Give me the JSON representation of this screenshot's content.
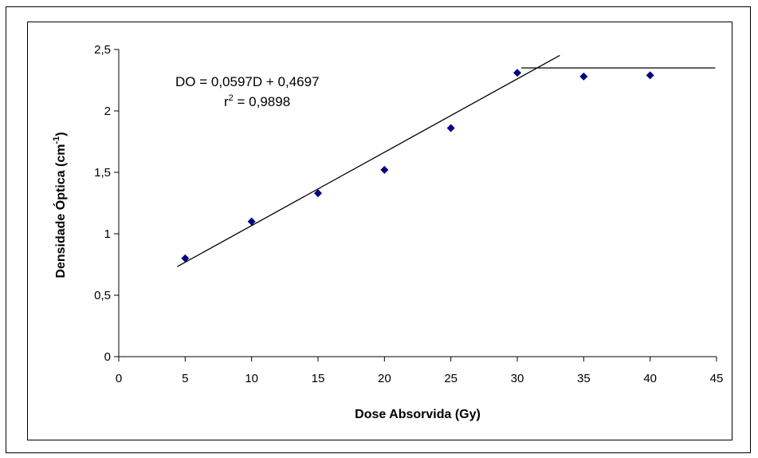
{
  "chart_data": {
    "type": "scatter",
    "xlabel": "Dose Absorvida (Gy)",
    "ylabel": "Densidade Óptica (cm",
    "ylabel_sup": "-1",
    "ylabel_close": ")",
    "xlim": [
      0,
      45
    ],
    "ylim": [
      0,
      2.5
    ],
    "x_ticks": [
      0,
      5,
      10,
      15,
      20,
      25,
      30,
      35,
      40,
      45
    ],
    "x_tick_labels": [
      "0",
      "5",
      "10",
      "15",
      "20",
      "25",
      "30",
      "35",
      "40",
      "45"
    ],
    "y_ticks": [
      0,
      0.5,
      1,
      1.5,
      2,
      2.5
    ],
    "y_tick_labels": [
      "0",
      "0,5",
      "1",
      "1,5",
      "2",
      "2,5"
    ],
    "grid": false,
    "legend": "none",
    "marker_color": "#000080",
    "points": [
      {
        "x": 5,
        "y": 0.8
      },
      {
        "x": 10,
        "y": 1.1
      },
      {
        "x": 15,
        "y": 1.33
      },
      {
        "x": 20,
        "y": 1.52
      },
      {
        "x": 25,
        "y": 1.86
      },
      {
        "x": 30,
        "y": 2.31
      },
      {
        "x": 35,
        "y": 2.28
      },
      {
        "x": 40,
        "y": 2.29
      }
    ],
    "trendline": {
      "x_start": 4.4,
      "x_end": 33.2,
      "slope": 0.0597,
      "intercept": 0.4697
    },
    "plateau_line": {
      "x_start": 30.3,
      "x_end": 44.9,
      "y": 2.35
    },
    "annotations": {
      "equation": "DO = 0,0597D + 0,4697",
      "r2_base": "r",
      "r2_sup": "2",
      "r2_value": " = 0,9898"
    }
  }
}
